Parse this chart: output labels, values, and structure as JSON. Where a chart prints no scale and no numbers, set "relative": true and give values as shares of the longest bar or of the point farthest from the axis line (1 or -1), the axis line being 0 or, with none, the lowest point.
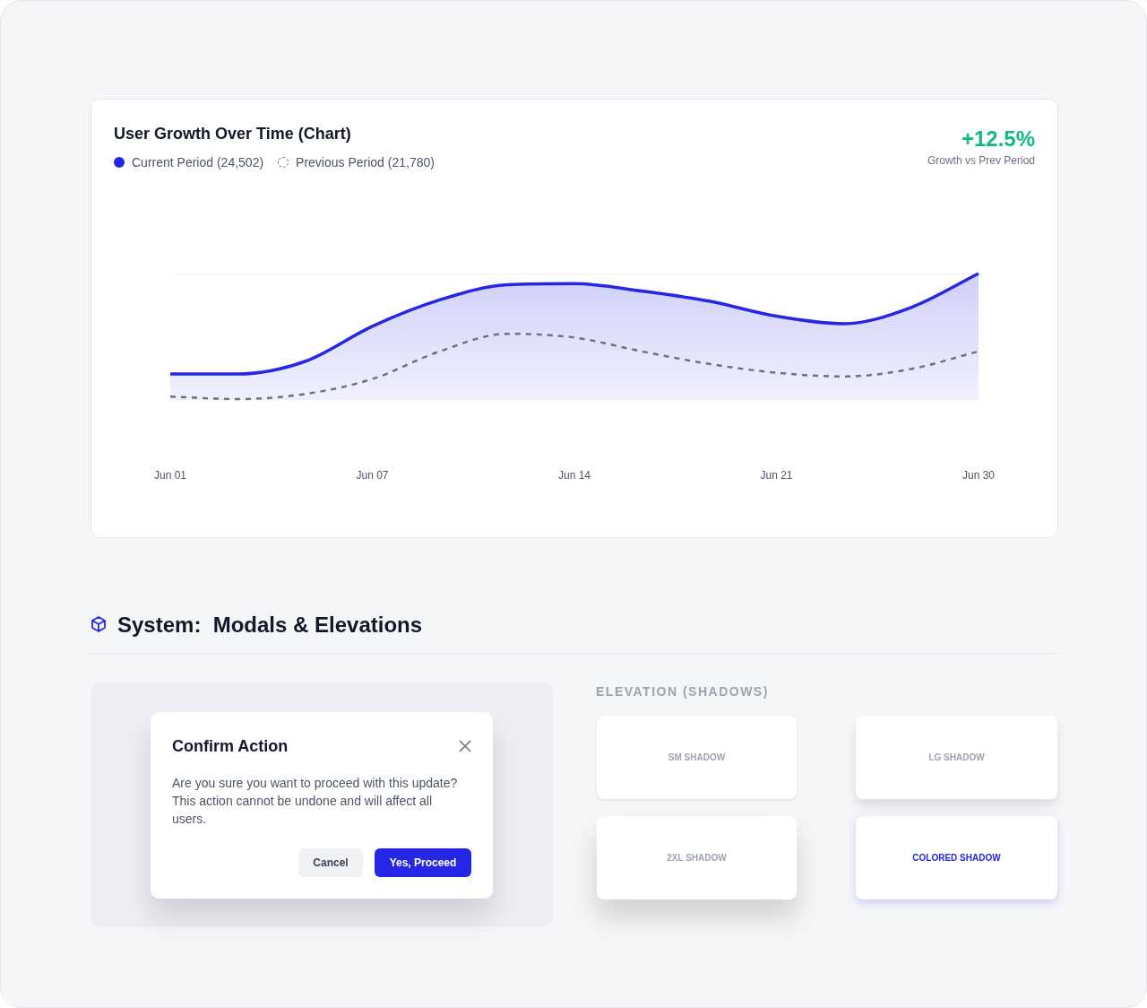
{
  "chart_data": [
    {
      "type": "line",
      "title": "User Growth Over Time (Chart)",
      "relative": true,
      "legend": "top left",
      "grid": "y",
      "line_style": "solid",
      "marker": "none",
      "annotations": [
        "+12.5%",
        "Growth vs Prev Period"
      ],
      "categories": [
        "Jun 01",
        null,
        null,
        "Jun 07",
        null,
        null,
        "Jun 14",
        null,
        null,
        "Jun 21",
        null,
        null,
        "Jun 30"
      ],
      "series": [
        {
          "name": "Current Period (24,502)",
          "type": "area",
          "color": "#2626e6",
          "values": [
            0.2,
            0.2,
            0.3,
            0.58,
            0.79,
            0.91,
            0.92,
            0.86,
            0.78,
            0.66,
            0.6,
            0.73,
            1
          ]
        },
        {
          "name": "Previous Period (21,780)",
          "type": "line",
          "line_style": "dashed",
          "color": "#6b7280",
          "values": [
            0.02,
            0,
            0.04,
            0.16,
            0.38,
            0.52,
            0.49,
            0.38,
            0.28,
            0.21,
            0.18,
            0.24,
            0.38
          ]
        }
      ]
    },
    {
      "type": "other",
      "title": "System:  Modals & Elevations",
      "annotations": [
        "Confirm Action",
        "Are you sure you want to proceed with this update? This action cannot be undone and will affect all users.",
        "Cancel",
        "Yes, Proceed",
        "ELEVATION (SHADOWS)",
        "SM SHADOW",
        "LG SHADOW",
        "2XL SHADOW",
        "COLORED SHADOW"
      ]
    }
  ]
}
